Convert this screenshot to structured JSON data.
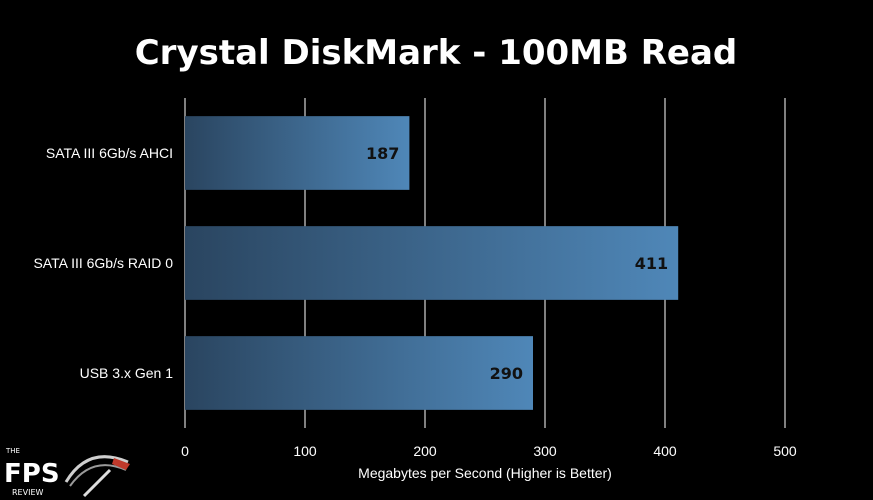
{
  "chart_data": {
    "type": "bar",
    "orientation": "horizontal",
    "title": "Crystal DiskMark - 100MB Read",
    "xlabel": "Megabytes per Second (Higher is Better)",
    "ylabel": "",
    "categories": [
      "SATA III 6Gb/s AHCI",
      "SATA III 6Gb/s RAID 0",
      "USB 3.x Gen 1"
    ],
    "values": [
      187,
      411,
      290
    ],
    "xlim": [
      0,
      500
    ],
    "xticks": [
      0,
      100,
      200,
      300,
      400,
      500
    ],
    "xtick_labels": [
      "0",
      "100",
      "200",
      "300",
      "400",
      "500"
    ],
    "grid": true,
    "legend": "none",
    "data_labels": [
      "187",
      "411",
      "290"
    ],
    "colors": {
      "background": "#000000",
      "bar_left": "#2a4560",
      "bar_right": "#4f87b8",
      "grid": "#ffffff",
      "text": "#ffffff",
      "value_text": "#111111"
    }
  },
  "logo": {
    "top": "THE",
    "main": "FPS",
    "bottom": "REVIEW"
  }
}
